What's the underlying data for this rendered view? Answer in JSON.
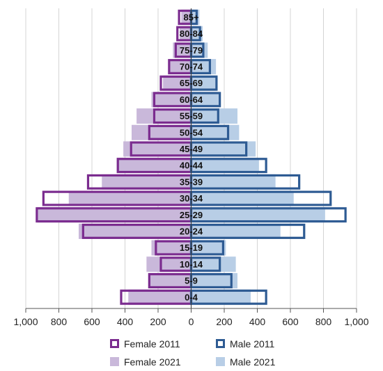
{
  "chart_data": {
    "type": "bar",
    "orientation": "horizontal",
    "subtype": "population-pyramid",
    "title": "",
    "xlabel": "",
    "ylabel": "",
    "xlim": [
      -1000,
      1000
    ],
    "x_tick_values": [
      -1000,
      -800,
      -600,
      -400,
      -200,
      0,
      200,
      400,
      600,
      800,
      1000
    ],
    "x_tick_labels": [
      "1,000",
      "800",
      "600",
      "400",
      "200",
      "0",
      "200",
      "400",
      "600",
      "800",
      "1,000"
    ],
    "grid": "vertical",
    "legend_position": "bottom",
    "categories": [
      "85+",
      "80-84",
      "75-79",
      "70-74",
      "65-69",
      "60-64",
      "55-59",
      "50-54",
      "45-49",
      "40-44",
      "35-39",
      "30-34",
      "25-29",
      "20-24",
      "15-19",
      "10-14",
      "5-9",
      "0-4"
    ],
    "series": [
      {
        "name": "Female 2011",
        "side": "left",
        "style": "outline",
        "color": "#7B2C8F",
        "values": [
          80,
          90,
          100,
          140,
          190,
          230,
          230,
          260,
          370,
          450,
          630,
          900,
          940,
          660,
          220,
          190,
          260,
          430
        ]
      },
      {
        "name": "Male 2011",
        "side": "right",
        "style": "outline",
        "color": "#2E5B93",
        "values": [
          40,
          60,
          80,
          120,
          160,
          180,
          170,
          230,
          340,
          460,
          660,
          850,
          940,
          690,
          200,
          180,
          250,
          460
        ]
      },
      {
        "name": "Female 2021",
        "side": "left",
        "style": "fill",
        "color": "#C9B8DA",
        "values": [
          60,
          70,
          110,
          130,
          170,
          240,
          330,
          360,
          410,
          450,
          540,
          740,
          930,
          680,
          240,
          270,
          250,
          380
        ]
      },
      {
        "name": "Male 2021",
        "side": "right",
        "style": "fill",
        "color": "#B8CEE6",
        "values": [
          50,
          70,
          100,
          150,
          150,
          170,
          280,
          290,
          390,
          410,
          510,
          620,
          810,
          540,
          210,
          270,
          280,
          360
        ]
      }
    ]
  }
}
